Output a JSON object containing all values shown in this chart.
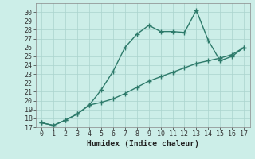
{
  "xlabel": "Humidex (Indice chaleur)",
  "x": [
    0,
    1,
    2,
    3,
    4,
    5,
    6,
    7,
    8,
    9,
    10,
    11,
    12,
    13,
    14,
    15,
    16,
    17
  ],
  "line1_y": [
    17.5,
    17.2,
    17.8,
    18.5,
    19.5,
    21.2,
    23.3,
    26.0,
    27.5,
    28.5,
    27.8,
    27.8,
    27.7,
    30.2,
    26.8,
    24.5,
    25.0,
    26.0
  ],
  "line2_y": [
    17.5,
    17.2,
    17.8,
    18.5,
    19.5,
    19.8,
    20.2,
    20.8,
    21.5,
    22.2,
    22.7,
    23.2,
    23.7,
    24.2,
    24.5,
    24.8,
    25.2,
    26.0
  ],
  "line_color": "#2d7a6a",
  "bg_color": "#cceee8",
  "grid_color": "#aad4ce",
  "ylim": [
    17,
    31
  ],
  "xlim": [
    -0.5,
    17.5
  ],
  "yticks": [
    17,
    18,
    19,
    20,
    21,
    22,
    23,
    24,
    25,
    26,
    27,
    28,
    29,
    30
  ],
  "xticks": [
    0,
    1,
    2,
    3,
    4,
    5,
    6,
    7,
    8,
    9,
    10,
    11,
    12,
    13,
    14,
    15,
    16,
    17
  ],
  "xtick_labels": [
    "0",
    "1",
    "2",
    "3",
    "4",
    "5",
    "6",
    "7",
    "8",
    "9",
    "10",
    "11",
    "12",
    "13",
    "14",
    "15",
    "16",
    "17"
  ],
  "marker": "+",
  "markersize": 5,
  "linewidth": 1.0,
  "tick_fontsize": 6,
  "xlabel_fontsize": 7
}
